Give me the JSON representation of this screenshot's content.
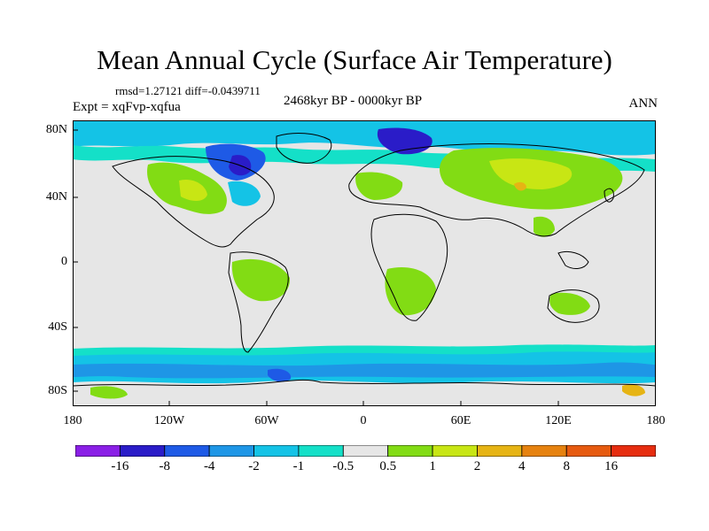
{
  "title": "Mean Annual Cycle (Surface Air Temperature)",
  "stats": {
    "rmsd_label": "rmsd=",
    "rmsd": "1.27121",
    "diff_label": "diff=",
    "diff": "-0.0439711"
  },
  "experiment": "Expt = xqFvp-xqfua",
  "period": "2468kyr BP - 0000kyr BP",
  "season": "ANN",
  "lat_labels": [
    "80N",
    "40N",
    "0",
    "40S",
    "80S"
  ],
  "lon_labels": [
    "180",
    "120W",
    "60W",
    "0",
    "60E",
    "120E",
    "180"
  ],
  "colorbar": {
    "labels": [
      "-16",
      "-8",
      "-4",
      "-2",
      "-1",
      "-0.5",
      "0.5",
      "1",
      "2",
      "4",
      "8",
      "16"
    ],
    "colors": [
      "#8a1fe6",
      "#2a1cc8",
      "#1e5ae6",
      "#1e96e6",
      "#14c3e6",
      "#14e0c8",
      "#e6e6e6",
      "#82dc14",
      "#c8e614",
      "#e6b414",
      "#e6820f",
      "#e65a0f",
      "#e62d0f"
    ]
  }
}
